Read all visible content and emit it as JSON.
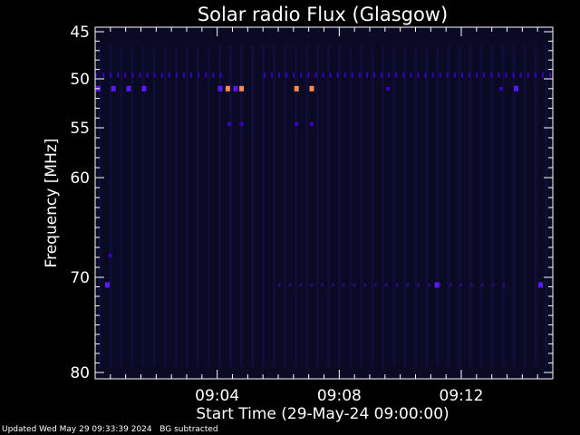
{
  "chart_data": {
    "type": "heatmap",
    "title": "Solar radio Flux (Glasgow)",
    "xlabel": "Start Time (29-May-24 09:00:00)",
    "ylabel": "Frequency [MHz]",
    "x_unit": "minutes after 09:00:00",
    "xlim": [
      0,
      15
    ],
    "ylim": [
      45,
      80
    ],
    "y_scale": "log",
    "x_ticks": [
      {
        "value": 4,
        "label": "09:04"
      },
      {
        "value": 8,
        "label": "09:08"
      },
      {
        "value": 12,
        "label": "09:12"
      }
    ],
    "y_ticks": [
      {
        "value": 45,
        "label": "45"
      },
      {
        "value": 50,
        "label": "50"
      },
      {
        "value": 55,
        "label": "55"
      },
      {
        "value": 60,
        "label": "60"
      },
      {
        "value": 70,
        "label": "70"
      },
      {
        "value": 80,
        "label": "80"
      }
    ],
    "colormap": [
      "#0a0a24",
      "#3a00c8",
      "#5a18ff",
      "#ff8a50"
    ],
    "grid": false,
    "hotspots": [
      {
        "t": 0.1,
        "f": 51.0,
        "level": 2
      },
      {
        "t": 0.6,
        "f": 51.0,
        "level": 2
      },
      {
        "t": 1.1,
        "f": 51.0,
        "level": 2
      },
      {
        "t": 1.6,
        "f": 51.0,
        "level": 2
      },
      {
        "t": 4.1,
        "f": 51.0,
        "level": 2
      },
      {
        "t": 4.35,
        "f": 51.0,
        "level": 3
      },
      {
        "t": 4.6,
        "f": 51.0,
        "level": 2
      },
      {
        "t": 4.8,
        "f": 51.0,
        "level": 3
      },
      {
        "t": 6.6,
        "f": 51.0,
        "level": 3
      },
      {
        "t": 7.1,
        "f": 51.0,
        "level": 3
      },
      {
        "t": 9.6,
        "f": 51.0,
        "level": 1
      },
      {
        "t": 13.3,
        "f": 51.0,
        "level": 1
      },
      {
        "t": 13.8,
        "f": 51.0,
        "level": 2
      },
      {
        "t": 4.4,
        "f": 54.6,
        "level": 1
      },
      {
        "t": 4.8,
        "f": 54.6,
        "level": 1
      },
      {
        "t": 6.6,
        "f": 54.6,
        "level": 1
      },
      {
        "t": 7.1,
        "f": 54.6,
        "level": 1
      },
      {
        "t": 0.4,
        "f": 70.8,
        "level": 2
      },
      {
        "t": 11.2,
        "f": 70.8,
        "level": 2
      },
      {
        "t": 14.6,
        "f": 70.8,
        "level": 2
      },
      {
        "t": 0.5,
        "f": 67.8,
        "level": 1
      }
    ],
    "band_49_5MHz": {
      "f": 49.6,
      "gap_start": 4.3,
      "gap_end": 5.4
    }
  },
  "footer": {
    "updated": "Updated Wed May 29 09:33:39 2024",
    "note": "BG subtracted"
  }
}
